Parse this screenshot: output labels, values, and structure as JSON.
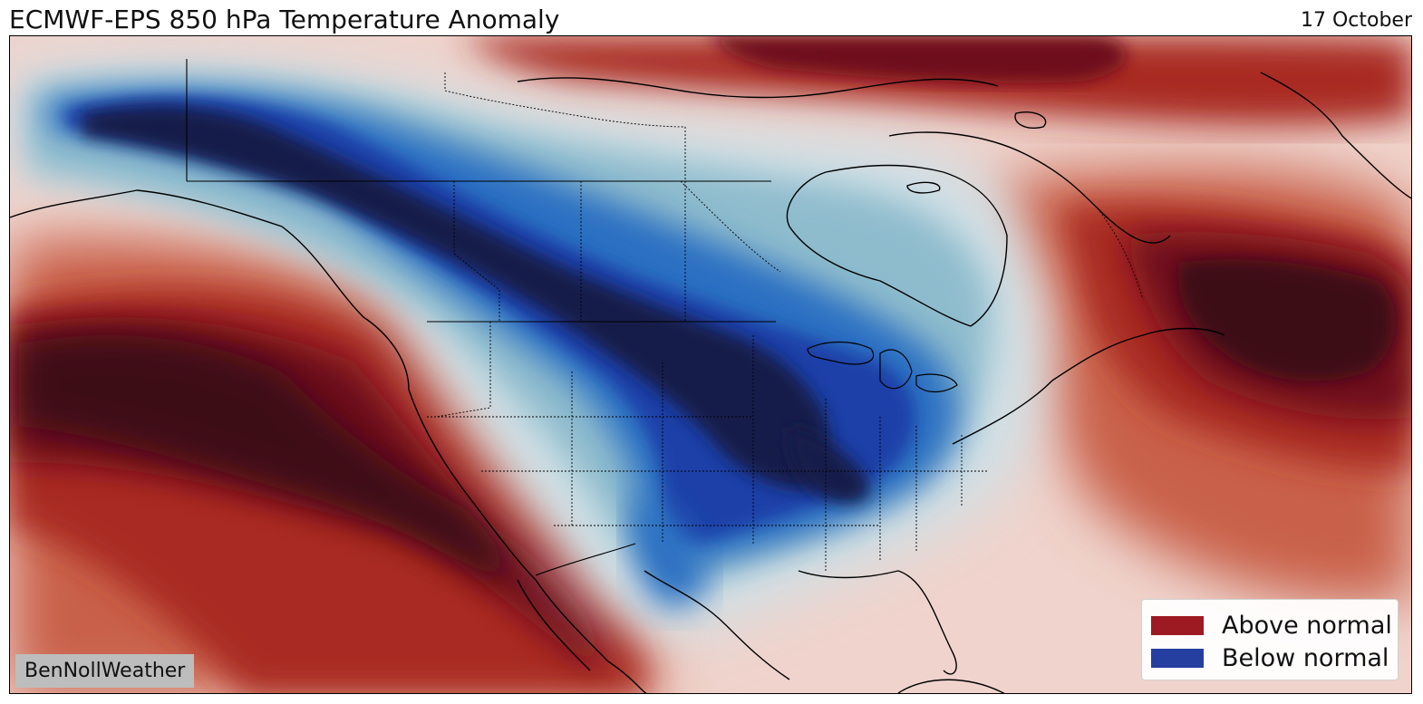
{
  "header": {
    "title": "ECMWF-EPS 850 hPa Temperature Anomaly",
    "date": "17 October"
  },
  "legend": {
    "items": [
      {
        "label": "Above normal",
        "color": "#9e1a22"
      },
      {
        "label": "Below normal",
        "color": "#253fa0"
      }
    ]
  },
  "credit": "BenNollWeather",
  "colors": {
    "warm_extreme": "#3d0d14",
    "warm_strong": "#6e0f1b",
    "warm": "#a92a22",
    "warm_light": "#c9614a",
    "warm_pale": "#e9c2b8",
    "neutral": "#f2ebe8",
    "cool_pale": "#cfe0e6",
    "cool_light": "#8fbccd",
    "cool": "#2a6fc2",
    "cool_strong": "#1a3fa8",
    "cool_extreme": "#161c4a"
  }
}
